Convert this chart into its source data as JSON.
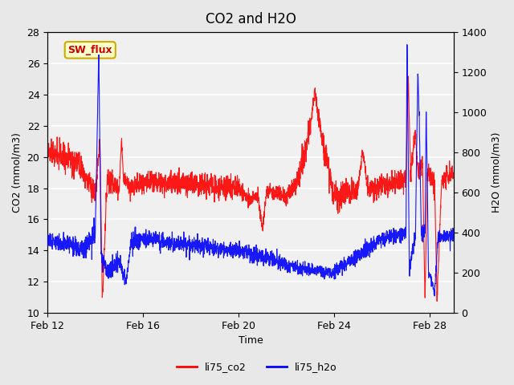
{
  "title": "CO2 and H2O",
  "xlabel": "Time",
  "ylabel_left": "CO2 (mmol/m3)",
  "ylabel_right": "H2O (mmol/m3)",
  "ylim_left": [
    10,
    28
  ],
  "ylim_right": [
    0,
    1400
  ],
  "yticks_left": [
    10,
    12,
    14,
    16,
    18,
    20,
    22,
    24,
    26,
    28
  ],
  "yticks_right": [
    0,
    200,
    400,
    600,
    800,
    1000,
    1200,
    1400
  ],
  "xtick_labels": [
    "Feb 12",
    "Feb 16",
    "Feb 20",
    "Feb 24",
    "Feb 28"
  ],
  "xtick_positions": [
    0,
    4,
    8,
    12,
    16
  ],
  "color_co2": "#ff0000",
  "color_h2o": "#0000ff",
  "legend_labels": [
    "li75_co2",
    "li75_h2o"
  ],
  "sw_flux_label": "SW_flux",
  "sw_flux_bg": "#ffffcc",
  "sw_flux_border": "#ccaa00",
  "sw_flux_text_color": "#cc0000",
  "background_color": "#e8e8e8",
  "plot_bg": "#f0f0f0",
  "grid_color": "#ffffff",
  "title_fontsize": 12,
  "axis_fontsize": 9
}
